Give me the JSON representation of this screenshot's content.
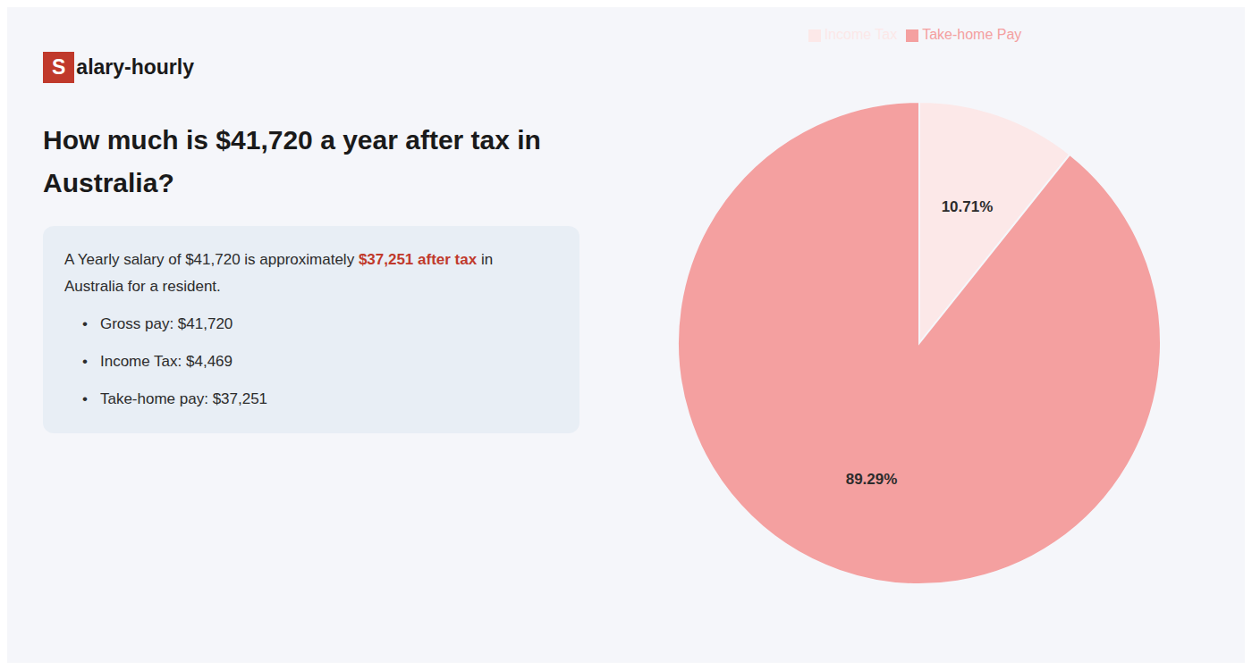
{
  "chart_data": {
    "type": "pie",
    "title": "How much is $41,720 a year after tax in Australia?",
    "annotations": [
      [
        {
          "text": "S",
          "color": "#c0392b"
        },
        {
          "text": "alary-hourly"
        }
      ],
      [
        {
          "text": "A Yearly salary of $41,720 is approximately "
        },
        {
          "text": "$37,251 after tax",
          "color": "#c0392b"
        },
        {
          "text": " in"
        }
      ],
      [
        {
          "text": "Australia for a resident."
        }
      ],
      [
        {
          "text": "•"
        },
        {
          "text": "Gross pay: $41,720"
        }
      ],
      [
        {
          "text": "•"
        },
        {
          "text": "Income Tax: $4,469"
        }
      ],
      [
        {
          "text": "•"
        },
        {
          "text": "Take-home pay: $37,251"
        }
      ]
    ],
    "categories": [
      "Income Tax",
      "Take-home Pay"
    ],
    "values": [
      10.71,
      89.29
    ],
    "value_labels": [
      "10.71%",
      "89.29%"
    ],
    "colors": [
      "#fce8e8",
      "#f4a0a0"
    ],
    "data_labels": true,
    "legend": "top"
  }
}
